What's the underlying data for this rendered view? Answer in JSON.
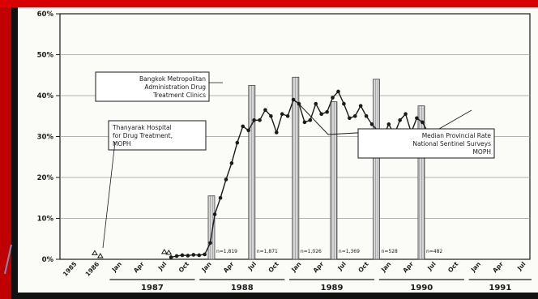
{
  "colors": {
    "frame_red": "#d80000",
    "ink": "#1a1a1a",
    "paper": "#fbfbf7"
  },
  "chart_data": {
    "type": "line",
    "title": "",
    "ylabel": "",
    "xlabel": "",
    "ylim": [
      0,
      60
    ],
    "yticks": [
      "0%",
      "10%",
      "20%",
      "30%",
      "40%",
      "50%",
      "60%"
    ],
    "grid": true,
    "categories": [
      "1985",
      "1986",
      "Jan",
      "Apr",
      "Jul",
      "Oct",
      "Jan",
      "Apr",
      "Jul",
      "Oct",
      "Jan",
      "Apr",
      "Jul",
      "Oct",
      "Jan",
      "Apr",
      "Jul",
      "Oct",
      "Jan",
      "Apr",
      "Jul"
    ],
    "years": [
      {
        "label": "1987"
      },
      {
        "label": "1988"
      },
      {
        "label": "1989"
      },
      {
        "label": "1990"
      },
      {
        "label": "1991"
      }
    ],
    "series": [
      {
        "name": "Bangkok Metropolitan Administration Drug Treatment Clinics",
        "points": [
          [
            4.3,
            0.5
          ],
          [
            4.55,
            0.8
          ],
          [
            4.8,
            1.0
          ],
          [
            5.05,
            0.9
          ],
          [
            5.3,
            1.1
          ],
          [
            5.55,
            1.0
          ],
          [
            5.8,
            1.2
          ],
          [
            6.05,
            4
          ],
          [
            6.25,
            11
          ],
          [
            6.5,
            15
          ],
          [
            6.75,
            19.5
          ],
          [
            7.0,
            23.5
          ],
          [
            7.25,
            28.5
          ],
          [
            7.5,
            32.5
          ],
          [
            7.75,
            31.5
          ],
          [
            8.0,
            34
          ],
          [
            8.25,
            34
          ],
          [
            8.5,
            36.5
          ],
          [
            8.75,
            35
          ],
          [
            9.0,
            31
          ],
          [
            9.25,
            35.5
          ],
          [
            9.5,
            35
          ],
          [
            9.75,
            39
          ],
          [
            10.0,
            38
          ],
          [
            10.25,
            33.5
          ],
          [
            10.5,
            34
          ],
          [
            10.75,
            38
          ],
          [
            11.0,
            35.5
          ],
          [
            11.25,
            36
          ],
          [
            11.5,
            39.5
          ],
          [
            11.75,
            41
          ],
          [
            12.0,
            38
          ],
          [
            12.25,
            34.5
          ],
          [
            12.5,
            35
          ],
          [
            12.75,
            37.5
          ],
          [
            13.0,
            35
          ],
          [
            13.25,
            33
          ],
          [
            13.5,
            31.5
          ],
          [
            13.75,
            30
          ],
          [
            14.0,
            33
          ],
          [
            14.25,
            30.5
          ],
          [
            14.5,
            34
          ],
          [
            14.75,
            35.5
          ],
          [
            15.0,
            31
          ],
          [
            15.25,
            34.5
          ],
          [
            15.5,
            33.5
          ],
          [
            15.75,
            31
          ],
          [
            16.0,
            30
          ]
        ]
      },
      {
        "name": "Thanyarak Hospital for Drug Treatment, MOPH",
        "points": [
          [
            0.9,
            1.5
          ],
          [
            1.15,
            0.8
          ],
          [
            4.0,
            1.8
          ],
          [
            4.2,
            1.6
          ]
        ]
      },
      {
        "name": "Median Provincial Rate National Sentinel Surveys MOPH",
        "points": [
          [
            9.9,
            38.5
          ],
          [
            11.3,
            30.5
          ],
          [
            13.5,
            31.2
          ],
          [
            16.0,
            31
          ]
        ]
      }
    ],
    "bars": [
      {
        "x": 6.1,
        "value": 15.5
      },
      {
        "x": 7.9,
        "value": 42.5
      },
      {
        "x": 9.85,
        "value": 44.5
      },
      {
        "x": 11.55,
        "value": 38.5
      },
      {
        "x": 13.45,
        "value": 44
      },
      {
        "x": 15.45,
        "value": 37.5
      }
    ],
    "sample_labels": [
      "n=1,819",
      "n=1,871",
      "n=1,026",
      "n=1,369",
      "n=528",
      "n=482"
    ],
    "annotations": [
      "Bangkok Metropolitan Administration Drug Treatment Clinics",
      "Thanyarak Hospital for Drug Treatment, MOPH",
      "Median Provincial Rate National Sentinel Surveys MOPH"
    ]
  }
}
